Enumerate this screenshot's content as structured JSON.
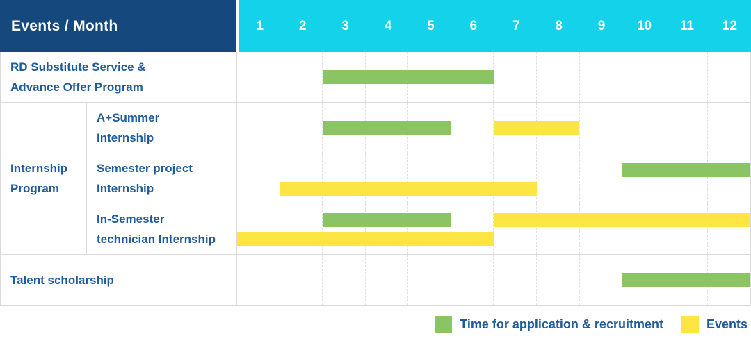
{
  "colors": {
    "navy": "#15497E",
    "cyan": "#14D2E9",
    "green": "#8BC463",
    "yellow": "#FDE644",
    "textblue": "#1E5C9B",
    "line": "#D9D9D9",
    "grid": "#DFDFDF"
  },
  "header": {
    "title": "Events / Month",
    "months": [
      "1",
      "2",
      "3",
      "4",
      "5",
      "6",
      "7",
      "8",
      "9",
      "10",
      "11",
      "12"
    ]
  },
  "rows": [
    {
      "kind": "single",
      "label_lines": [
        "RD Substitute Service &",
        "Advance Offer Program"
      ],
      "bars": [
        {
          "type": "application",
          "start": 3,
          "end": 6,
          "band": "center"
        }
      ]
    },
    {
      "kind": "group",
      "label_lines": [
        "Internship",
        "Program"
      ],
      "subrows": [
        {
          "label_lines": [
            "A+Summer",
            "Internship"
          ],
          "bars": [
            {
              "type": "application",
              "start": 3,
              "end": 5,
              "band": "center"
            },
            {
              "type": "events",
              "start": 7,
              "end": 8,
              "band": "center"
            }
          ]
        },
        {
          "label_lines": [
            "Semester project",
            "Internship"
          ],
          "bars": [
            {
              "type": "application",
              "start": 10,
              "end": 12,
              "band": "top"
            },
            {
              "type": "events",
              "start": 2,
              "end": 7,
              "band": "bottom"
            }
          ]
        },
        {
          "label_lines": [
            "In-Semester",
            "technician Internship"
          ],
          "bars": [
            {
              "type": "application",
              "start": 3,
              "end": 5,
              "band": "top"
            },
            {
              "type": "events",
              "start": 7,
              "end": 12,
              "band": "top"
            },
            {
              "type": "events",
              "start": 1,
              "end": 6,
              "band": "bottom"
            }
          ]
        }
      ]
    },
    {
      "kind": "single",
      "label_lines": [
        "Talent scholarship"
      ],
      "bars": [
        {
          "type": "application",
          "start": 10,
          "end": 12,
          "band": "center"
        }
      ]
    }
  ],
  "legend": {
    "items": [
      {
        "type": "application",
        "label": "Time for application & recruitment"
      },
      {
        "type": "events",
        "label": "Events"
      }
    ]
  },
  "chart_data": {
    "type": "gantt",
    "title": "Events / Month",
    "x_axis": {
      "label": "Month",
      "ticks": [
        1,
        2,
        3,
        4,
        5,
        6,
        7,
        8,
        9,
        10,
        11,
        12
      ],
      "range": [
        1,
        12
      ]
    },
    "grid": true,
    "legend_position": "bottom-right",
    "series_meaning": {
      "application": "Time for application & recruitment (green)",
      "events": "Events (yellow)"
    },
    "tasks": [
      {
        "name": "RD Substitute Service & Advance Offer Program",
        "group": null,
        "application_recruitment_months": [
          [
            3,
            6
          ]
        ],
        "events_months": []
      },
      {
        "name": "A+Summer Internship",
        "group": "Internship Program",
        "application_recruitment_months": [
          [
            3,
            5
          ]
        ],
        "events_months": [
          [
            7,
            8
          ]
        ]
      },
      {
        "name": "Semester project Internship",
        "group": "Internship Program",
        "application_recruitment_months": [
          [
            10,
            12
          ]
        ],
        "events_months": [
          [
            2,
            7
          ]
        ]
      },
      {
        "name": "In-Semester technician Internship",
        "group": "Internship Program",
        "application_recruitment_months": [
          [
            3,
            5
          ]
        ],
        "events_months": [
          [
            1,
            6
          ],
          [
            7,
            12
          ]
        ]
      },
      {
        "name": "Talent scholarship",
        "group": null,
        "application_recruitment_months": [
          [
            10,
            12
          ]
        ],
        "events_months": []
      }
    ]
  }
}
